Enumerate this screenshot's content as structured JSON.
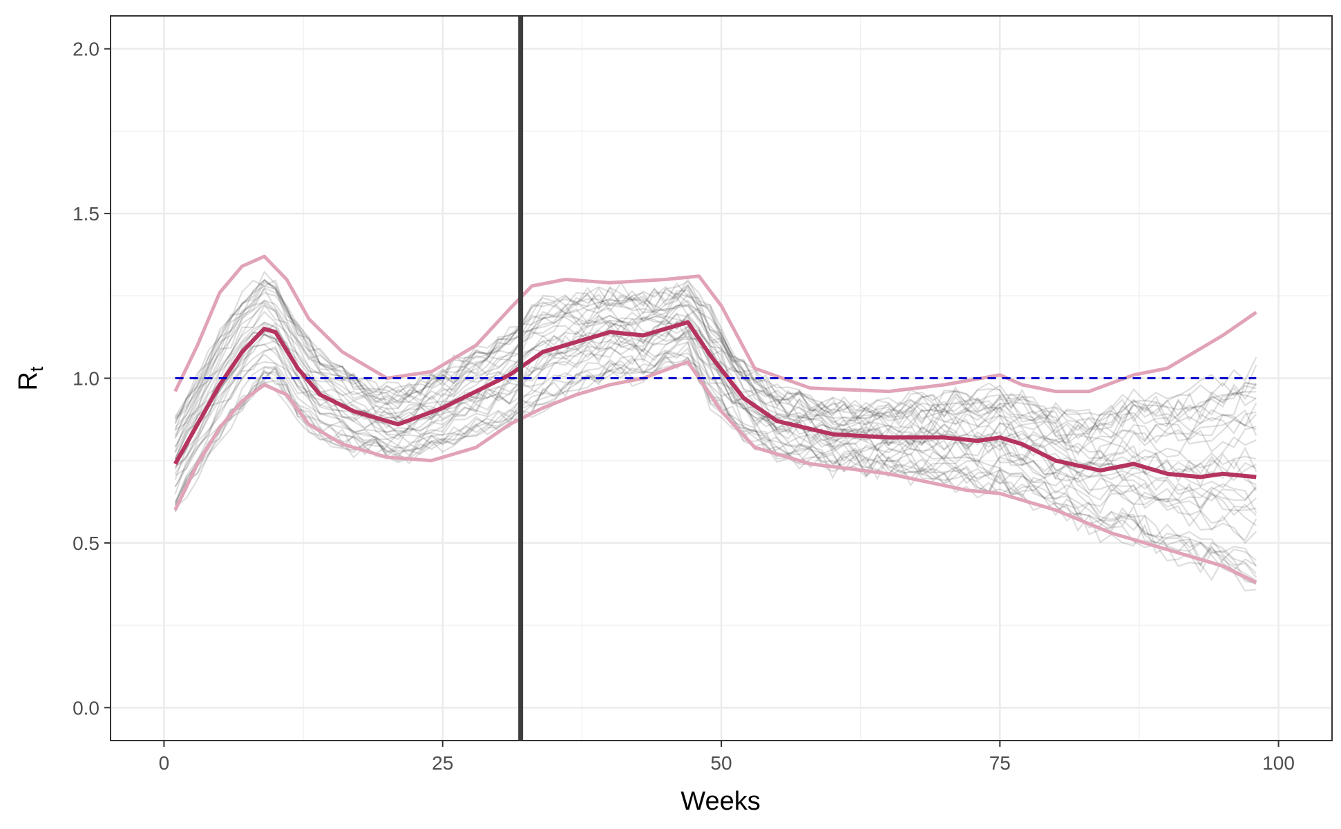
{
  "chart_data": {
    "type": "line",
    "xlabel": "Weeks",
    "ylabel": "R",
    "ylabel_subscript": "t",
    "xlim": [
      -4.8,
      104.8
    ],
    "ylim": [
      -0.1,
      2.1
    ],
    "xticks": [
      0,
      25,
      50,
      75,
      100
    ],
    "yticks": [
      0.0,
      0.5,
      1.0,
      1.5,
      2.0
    ],
    "xtick_labels": [
      "0",
      "25",
      "50",
      "75",
      "100"
    ],
    "ytick_labels": [
      "0.0",
      "0.5",
      "1.0",
      "1.5",
      "2.0"
    ],
    "grid": true,
    "reference_line": {
      "y": 1.0,
      "style": "dashed",
      "color": "#0000cc"
    },
    "vertical_line": {
      "x": 32,
      "color": "#3d3d3d"
    },
    "colors": {
      "median": "#b5345e",
      "interval": "#e1a3b6",
      "samples": "#000000"
    },
    "median": {
      "x": [
        1,
        3,
        5,
        7,
        9,
        10,
        12,
        14,
        17,
        21,
        25,
        28,
        31,
        34,
        37,
        40,
        43,
        47,
        49,
        52,
        55,
        60,
        65,
        70,
        73,
        75,
        77,
        80,
        84,
        87,
        90,
        93,
        95,
        98
      ],
      "y": [
        0.74,
        0.86,
        0.98,
        1.08,
        1.15,
        1.14,
        1.03,
        0.95,
        0.9,
        0.86,
        0.91,
        0.96,
        1.01,
        1.08,
        1.11,
        1.14,
        1.13,
        1.17,
        1.07,
        0.94,
        0.87,
        0.83,
        0.82,
        0.82,
        0.81,
        0.82,
        0.8,
        0.75,
        0.72,
        0.74,
        0.71,
        0.7,
        0.71,
        0.7
      ]
    },
    "upper_bound": {
      "x": [
        1,
        3,
        5,
        7,
        9,
        11,
        13,
        16,
        20,
        24,
        28,
        31,
        33,
        36,
        40,
        45,
        48,
        50,
        53,
        58,
        65,
        70,
        75,
        77,
        80,
        83,
        87,
        90,
        95,
        98
      ],
      "y": [
        0.96,
        1.1,
        1.26,
        1.34,
        1.37,
        1.3,
        1.18,
        1.08,
        1.0,
        1.02,
        1.1,
        1.21,
        1.28,
        1.3,
        1.29,
        1.3,
        1.31,
        1.22,
        1.03,
        0.97,
        0.96,
        0.98,
        1.01,
        0.98,
        0.96,
        0.96,
        1.01,
        1.03,
        1.13,
        1.2
      ]
    },
    "lower_bound": {
      "x": [
        1,
        3,
        5,
        7,
        9,
        11,
        13,
        16,
        20,
        24,
        28,
        31,
        34,
        37,
        40,
        43,
        47,
        50,
        53,
        58,
        65,
        72,
        75,
        80,
        85,
        90,
        95,
        98
      ],
      "y": [
        0.6,
        0.74,
        0.85,
        0.93,
        0.98,
        0.95,
        0.86,
        0.8,
        0.76,
        0.75,
        0.79,
        0.86,
        0.91,
        0.95,
        0.98,
        1.0,
        1.05,
        0.9,
        0.79,
        0.74,
        0.71,
        0.66,
        0.65,
        0.6,
        0.53,
        0.48,
        0.43,
        0.38
      ]
    }
  }
}
